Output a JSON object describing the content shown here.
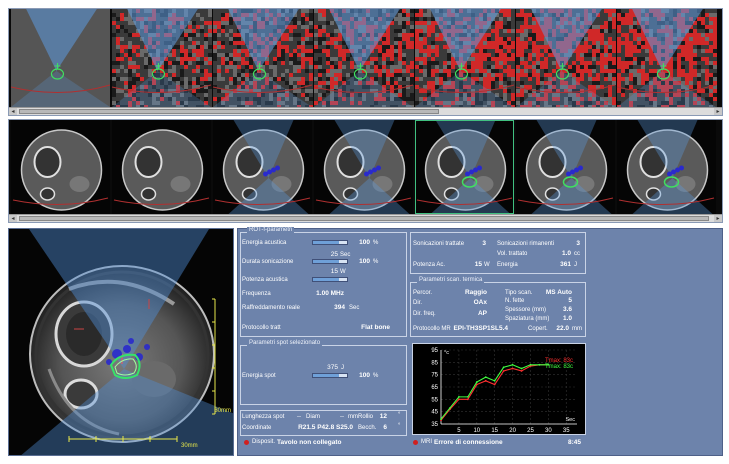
{
  "scan_params_title": "ROT-f-parametri",
  "energia_acustica": {
    "label": "Energia acustica",
    "value": "100",
    "unit": "%",
    "level": 0.75
  },
  "durata_sonicazione": {
    "label": "Durata sonicazione",
    "value": "100",
    "unit": "%",
    "above_value": "25",
    "above_unit": "Sec",
    "level": 0.75
  },
  "potenza_acustica": {
    "label": "Potenza acustica",
    "above_value": "15",
    "above_unit": "W",
    "level": 0.75
  },
  "frequenza": {
    "label": "Frequenza",
    "value": "1.00 MHz"
  },
  "raffreddamento": {
    "label": "Raffreddamento reale",
    "value": "394",
    "unit": "Sec"
  },
  "protocollo_tratt": {
    "label": "Protocollo tratt",
    "value": "Flat bone"
  },
  "spot_title": "Parametri spot selezionato",
  "energia_spot": {
    "label": "Energia spot",
    "above_value": "375",
    "above_unit": "J",
    "value": "100",
    "unit": "%",
    "level": 0.75
  },
  "spot_info": {
    "lunghezza_label": "Lunghezza spot",
    "lunghezza_val": "--",
    "diam_label": "Diam",
    "diam_val": "--",
    "diam_unit": "mm",
    "rollio_label": "Rollio",
    "rollio_val": "12",
    "rollio_unit": "°",
    "coord_label": "Coordinate",
    "coord_val": "R21.5 P42.8 S25.0",
    "becch_label": "Becch.",
    "becch_val": "6",
    "becch_unit": "°"
  },
  "treatment": {
    "soniche_label": "Sonicazioni trattate",
    "soniche_val": "3",
    "rimanenti_label": "Sonicazioni rimanenti",
    "rimanenti_val": "3",
    "vol_label": "Vol. trattato",
    "vol_val": "1.0",
    "vol_unit": "cc",
    "potenza_label": "Potenza Ac.",
    "potenza_val": "15",
    "potenza_unit": "W",
    "energia_label": "Energia",
    "energia_val": "361",
    "energia_unit": "J"
  },
  "thermal_title": "Parametri scan. termica",
  "thermal": {
    "percor_label": "Percor.",
    "percor_val": "Raggio",
    "tipo_label": "Tipo scan.",
    "tipo_val": "MS Auto",
    "dir_label": "Dir.",
    "dir_val": "OAx",
    "fette_label": "N. fette",
    "fette_val": "5",
    "dirfreq_label": "Dir. freq.",
    "dirfreq_val": "AP",
    "spessore_label": "Spessore (mm)",
    "spessore_val": "3.6",
    "spaziatura_label": "Spaziatura (mm)",
    "spaziatura_val": "1.0",
    "protmr_label": "Protocollo MR",
    "protmr_val": "EPI-TH3SP1SL5.4",
    "copert_label": "Copert.",
    "copert_val": "22.0",
    "copert_unit": "mm"
  },
  "status": {
    "disposit_label": "Disposit.",
    "disposit_val": "Tavolo non collegato",
    "mri_label": "MRI",
    "mri_val": "Errore di connessione",
    "time": "8:45"
  },
  "main_view": {
    "scale_h": "30mm",
    "scale_v": "30mm"
  },
  "chart_data": {
    "type": "line",
    "ylabel": "°c",
    "xlabel": "Sec",
    "xlim": [
      0,
      38
    ],
    "ylim": [
      35,
      95
    ],
    "x_ticks": [
      "5",
      "10",
      "15",
      "20",
      "25",
      "30",
      "35"
    ],
    "y_ticks": [
      "35",
      "45",
      "55",
      "65",
      "75",
      "85",
      "95"
    ],
    "x_tick_values": [
      5,
      10,
      15,
      20,
      25,
      30,
      35
    ],
    "y_tick_values": [
      35,
      45,
      55,
      65,
      75,
      85,
      95
    ],
    "legend": "top-right",
    "series": [
      {
        "name": "Tmax: 83c",
        "color": "#ff3030",
        "x": [
          0,
          2.5,
          5,
          7.5,
          10,
          12.5,
          15,
          17.5,
          20,
          22.5,
          25,
          27.5,
          30
        ],
        "y": [
          38,
          47,
          55,
          55,
          67,
          70,
          67,
          78,
          80,
          78,
          82,
          83,
          83
        ]
      },
      {
        "name": "Tmax: 83c",
        "color": "#40ff40",
        "x": [
          0,
          2.5,
          5,
          7.5,
          10,
          12.5,
          15,
          17.5,
          20,
          22.5,
          25,
          27.5,
          30
        ],
        "y": [
          39,
          48,
          57,
          57,
          69,
          73,
          70,
          81,
          83,
          80,
          83,
          83,
          83
        ]
      }
    ]
  }
}
